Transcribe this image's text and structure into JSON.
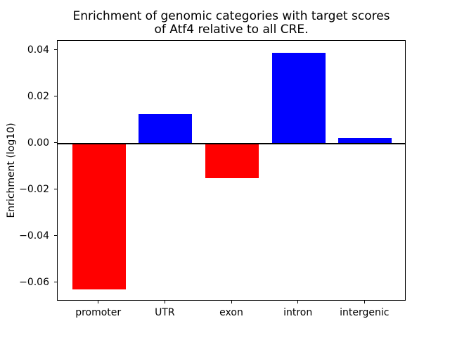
{
  "figure": {
    "background": "#ffffff"
  },
  "chart_data": {
    "type": "bar",
    "title_lines": [
      "Enrichment of genomic categories with target scores",
      "of Atf4 relative to all CRE."
    ],
    "categories": [
      "promoter",
      "UTR",
      "exon",
      "intron",
      "intergenic"
    ],
    "values": [
      -0.0627,
      0.0127,
      -0.015,
      0.0391,
      0.0023
    ],
    "bar_colors": [
      "#ff0000",
      "#0000ff",
      "#ff0000",
      "#0000ff",
      "#0000ff"
    ],
    "positive_color": "#0000ff",
    "negative_color": "#ff0000",
    "xlabel": "",
    "ylabel": "Enrichment (log10)",
    "yticks": [
      0.04,
      0.02,
      0.0,
      -0.02,
      -0.04,
      -0.06
    ],
    "ytick_labels": [
      "0.04",
      "0.02",
      "0.00",
      "−0.02",
      "−0.04",
      "−0.06"
    ],
    "ylim": [
      -0.068,
      0.0442
    ],
    "bar_width_fraction": 0.8,
    "x_margin": 0.62,
    "zero_line": true,
    "zero_line_color": "#000000",
    "grid": false,
    "legend": null,
    "axis_color": "#000000"
  }
}
